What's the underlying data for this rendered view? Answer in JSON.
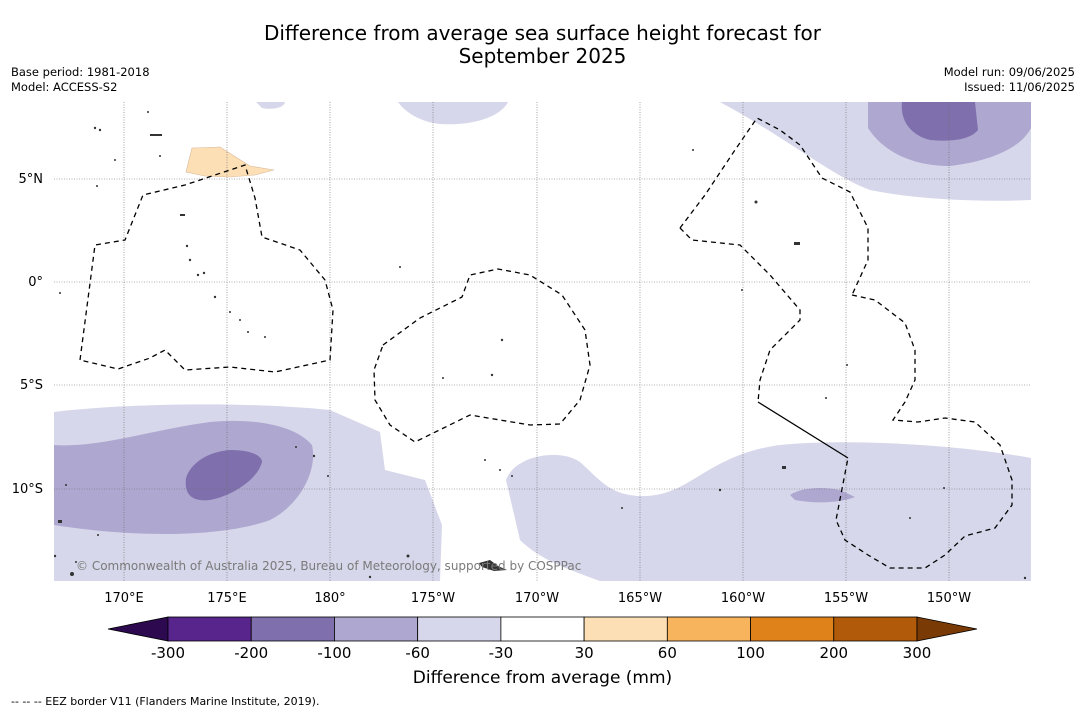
{
  "title_line1": "Difference from average sea surface height forecast for",
  "title_line2": "September 2025",
  "base_period": "Base period: 1981-2018",
  "model": "Model: ACCESS-S2",
  "model_run": "Model run: 09/06/2025",
  "issued": "Issued: 11/06/2025",
  "lat_labels": [
    "5°N",
    "0°",
    "5°S",
    "10°S"
  ],
  "lon_labels": [
    "170°E",
    "175°E",
    "180°",
    "175°W",
    "170°W",
    "165°W",
    "160°W",
    "155°W",
    "150°W"
  ],
  "copyright": "© Commonwealth of Australia 2025, Bureau of Meteorology, supported by COSPPac",
  "colorbar": {
    "title": "Difference from average (mm)",
    "tick_labels": [
      "-300",
      "-200",
      "-100",
      "-60",
      "-30",
      "30",
      "60",
      "100",
      "200",
      "300"
    ],
    "colors": [
      "#58258c",
      "#7f70ad",
      "#aea8d0",
      "#d6d7ea",
      "#ffffff",
      "#fddfb5",
      "#f8b45c",
      "#e0821a",
      "#b15a0a"
    ],
    "under_color": "#2d0a50",
    "over_color": "#7a3a05"
  },
  "legend_eez": "--  --  -- EEZ border V11 (Flanders Marine Institute, 2019).",
  "colors": {
    "land": "#333333",
    "grid": "#666666",
    "eez": "#000000"
  }
}
